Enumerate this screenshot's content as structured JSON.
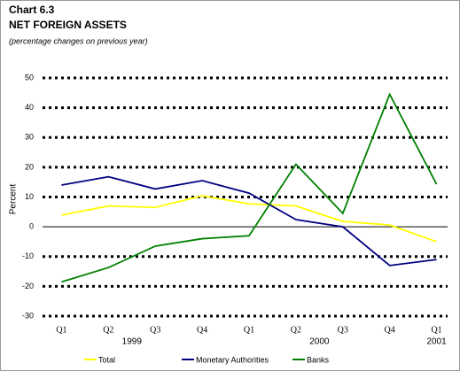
{
  "chart_data": {
    "type": "line",
    "title": "Chart 6.3",
    "subtitle": "NET FOREIGN ASSETS",
    "note": "(percentage changes on previous year)",
    "y_label": "Percent",
    "categories": [
      "Q1",
      "Q2",
      "Q3",
      "Q4",
      "Q1",
      "Q2",
      "Q3",
      "Q4",
      "Q1"
    ],
    "category_groups": [
      {
        "label": "1999",
        "start": 0,
        "end": 3
      },
      {
        "label": "2000",
        "start": 4,
        "end": 7
      },
      {
        "label": "2001",
        "start": 8,
        "end": 8
      }
    ],
    "series": [
      {
        "name": "Total",
        "color": "#ffff00",
        "values": [
          3.9,
          7,
          6.5,
          10.4,
          7.7,
          7,
          1.8,
          0.6,
          -5
        ]
      },
      {
        "name": "Monetary Authorities",
        "color": "#000080",
        "values": [
          14,
          16.8,
          12.7,
          15.5,
          11.3,
          2.4,
          0,
          -13,
          -11
        ]
      },
      {
        "name": "Banks",
        "color": "#008000",
        "values": [
          -18.5,
          -13.7,
          -6.5,
          -4,
          -3,
          21,
          4.5,
          44.5,
          14.3
        ]
      }
    ],
    "ylim": [
      -30,
      50
    ],
    "yticks": [
      -30,
      -20,
      -10,
      0,
      10,
      20,
      30,
      40,
      50
    ],
    "grid": true
  }
}
